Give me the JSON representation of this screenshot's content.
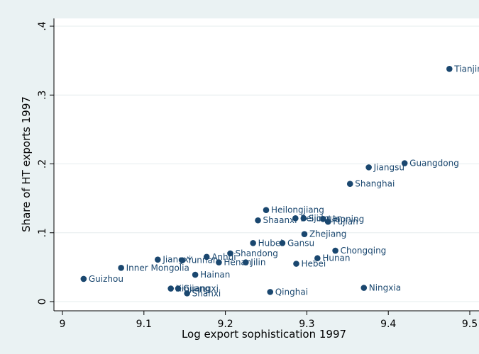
{
  "chart_data": {
    "type": "scatter",
    "title": "",
    "xlabel": "Log export sophistication 1997",
    "ylabel": "Share of HT exports 1997",
    "xlim": [
      9.0,
      9.5
    ],
    "ylim": [
      0,
      0.4
    ],
    "x_ticks": [
      9.0,
      9.1,
      9.2,
      9.3,
      9.4,
      9.5
    ],
    "x_tick_labels": [
      "9",
      "9.1",
      "9.2",
      "9.3",
      "9.4",
      "9.5"
    ],
    "y_ticks": [
      0,
      0.1,
      0.2,
      0.3,
      0.4
    ],
    "y_tick_labels": [
      "0",
      ".1",
      ".2",
      ".3",
      ".4"
    ],
    "grid": "horizontal",
    "marker_color": "#1a476f",
    "plot_background": "#ffffff",
    "outer_background": "#eaf2f3",
    "points": [
      {
        "label": "Tianjin",
        "x": 9.475,
        "y": 0.338
      },
      {
        "label": "Guangdong",
        "x": 9.42,
        "y": 0.201
      },
      {
        "label": "Jiangsu",
        "x": 9.376,
        "y": 0.195
      },
      {
        "label": "Shanghai",
        "x": 9.353,
        "y": 0.171
      },
      {
        "label": "Heilongjiang",
        "x": 9.25,
        "y": 0.133
      },
      {
        "label": "Shaanxi",
        "x": 9.24,
        "y": 0.118
      },
      {
        "label": "Beijing",
        "x": 9.286,
        "y": 0.121
      },
      {
        "label": "Sichuan",
        "x": 9.296,
        "y": 0.121
      },
      {
        "label": "Liaoning",
        "x": 9.32,
        "y": 0.12
      },
      {
        "label": "Fujian",
        "x": 9.326,
        "y": 0.116
      },
      {
        "label": "Zhejiang",
        "x": 9.297,
        "y": 0.098
      },
      {
        "label": "Hubei",
        "x": 9.234,
        "y": 0.085
      },
      {
        "label": "Gansu",
        "x": 9.27,
        "y": 0.085
      },
      {
        "label": "Chongqing",
        "x": 9.335,
        "y": 0.074
      },
      {
        "label": "Shandong",
        "x": 9.206,
        "y": 0.07
      },
      {
        "label": "Anhui",
        "x": 9.177,
        "y": 0.065
      },
      {
        "label": "Hunan",
        "x": 9.313,
        "y": 0.063
      },
      {
        "label": "Jiangxi",
        "x": 9.117,
        "y": 0.061
      },
      {
        "label": "Yunnan",
        "x": 9.147,
        "y": 0.06
      },
      {
        "label": "Henan",
        "x": 9.192,
        "y": 0.057
      },
      {
        "label": "Jilin",
        "x": 9.225,
        "y": 0.057
      },
      {
        "label": "Hebei",
        "x": 9.287,
        "y": 0.055
      },
      {
        "label": "Inner Mongolia",
        "x": 9.072,
        "y": 0.049
      },
      {
        "label": "Hainan",
        "x": 9.163,
        "y": 0.039
      },
      {
        "label": "Guizhou",
        "x": 9.026,
        "y": 0.033
      },
      {
        "label": "Ningxia",
        "x": 9.37,
        "y": 0.02
      },
      {
        "label": "Xinjiang",
        "x": 9.133,
        "y": 0.019
      },
      {
        "label": "Guangxi",
        "x": 9.142,
        "y": 0.019
      },
      {
        "label": "Qinghai",
        "x": 9.255,
        "y": 0.014
      },
      {
        "label": "Shanxi",
        "x": 9.153,
        "y": 0.012
      }
    ]
  }
}
